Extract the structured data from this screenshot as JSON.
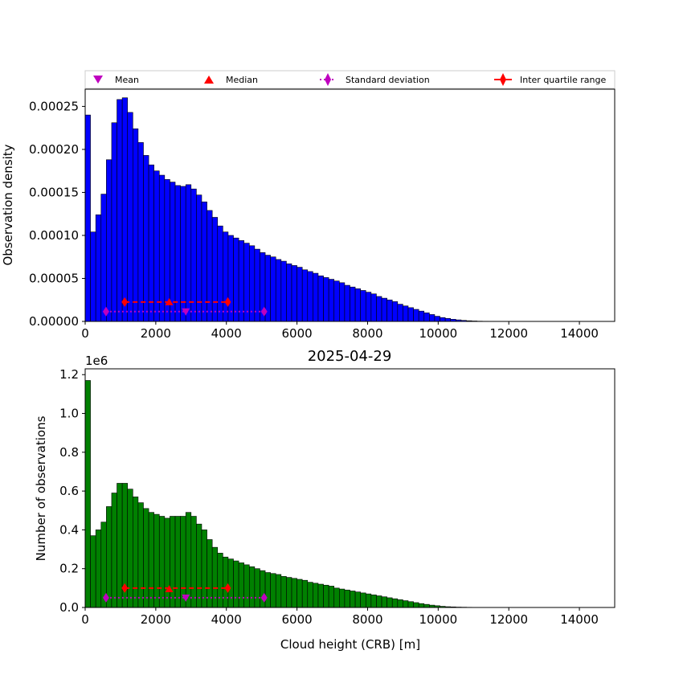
{
  "chart_data": [
    {
      "type": "bar",
      "panel": "top",
      "ylabel": "Observation density",
      "xlabel": "",
      "title": "",
      "xlim": [
        0,
        15000
      ],
      "ylim": [
        0,
        0.00027
      ],
      "xticks": [
        0,
        2000,
        4000,
        6000,
        8000,
        10000,
        12000,
        14000
      ],
      "yticks": [
        0.0,
        5e-05,
        0.0001,
        0.00015,
        0.0002,
        0.00025
      ],
      "ytick_labels": [
        "0.00000",
        "0.00005",
        "0.00010",
        "0.00015",
        "0.00020",
        "0.00025"
      ],
      "bin_width": 150,
      "bar_color": "#0000ff",
      "values": [
        0.00024,
        0.000104,
        0.000124,
        0.000148,
        0.000188,
        0.000231,
        0.000258,
        0.00026,
        0.000243,
        0.000224,
        0.000208,
        0.000193,
        0.000182,
        0.000175,
        0.00017,
        0.000165,
        0.000162,
        0.000158,
        0.000157,
        0.000159,
        0.000154,
        0.000147,
        0.000139,
        0.000129,
        0.000121,
        0.000111,
        0.000104,
        0.0001,
        9.7e-05,
        9.4e-05,
        9.1e-05,
        8.8e-05,
        8.4e-05,
        8e-05,
        7.7e-05,
        7.5e-05,
        7.2e-05,
        7e-05,
        6.7e-05,
        6.5e-05,
        6.3e-05,
        6e-05,
        5.8e-05,
        5.6e-05,
        5.3e-05,
        5.1e-05,
        4.9e-05,
        4.7e-05,
        4.5e-05,
        4.2e-05,
        4e-05,
        3.8e-05,
        3.6e-05,
        3.4e-05,
        3.2e-05,
        2.9e-05,
        2.7e-05,
        2.5e-05,
        2.3e-05,
        2e-05,
        1.8e-05,
        1.6e-05,
        1.4e-05,
        1.2e-05,
        1e-05,
        8e-06,
        6e-06,
        4.5e-06,
        3.5e-06,
        2.5e-06,
        1.8e-06,
        1.2e-06,
        8e-07,
        5e-07,
        3e-07,
        2e-07,
        1e-07,
        1e-07,
        5e-08,
        3e-08
      ],
      "stats": {
        "mean": {
          "x": 2850,
          "y": 1.15e-05
        },
        "median": {
          "x": 2380,
          "y": 2.25e-05
        },
        "std": {
          "x": [
            590,
            5070
          ],
          "y": 1.15e-05
        },
        "iqr": {
          "x": [
            1120,
            4040
          ],
          "y": 2.25e-05
        }
      }
    },
    {
      "type": "bar",
      "panel": "bottom",
      "title": "2025-04-29",
      "xlabel": "Cloud height (CRB) [m]",
      "ylabel": "Number of observations",
      "offset_label": "1e6",
      "xlim": [
        0,
        15000
      ],
      "ylim": [
        0,
        1.23
      ],
      "xticks": [
        0,
        2000,
        4000,
        6000,
        8000,
        10000,
        12000,
        14000
      ],
      "yticks": [
        0.0,
        0.2,
        0.4,
        0.6,
        0.8,
        1.0,
        1.2
      ],
      "ytick_labels": [
        "0.0",
        "0.2",
        "0.4",
        "0.6",
        "0.8",
        "1.0",
        "1.2"
      ],
      "bin_width": 150,
      "bar_color": "#008000",
      "values": [
        1.17,
        0.37,
        0.4,
        0.44,
        0.52,
        0.59,
        0.64,
        0.64,
        0.61,
        0.57,
        0.54,
        0.51,
        0.49,
        0.48,
        0.47,
        0.46,
        0.47,
        0.47,
        0.47,
        0.49,
        0.47,
        0.43,
        0.4,
        0.35,
        0.31,
        0.28,
        0.26,
        0.25,
        0.24,
        0.23,
        0.22,
        0.21,
        0.2,
        0.19,
        0.18,
        0.175,
        0.17,
        0.16,
        0.155,
        0.15,
        0.145,
        0.14,
        0.13,
        0.125,
        0.12,
        0.115,
        0.11,
        0.1,
        0.095,
        0.09,
        0.085,
        0.08,
        0.075,
        0.07,
        0.065,
        0.06,
        0.055,
        0.05,
        0.045,
        0.04,
        0.035,
        0.03,
        0.025,
        0.02,
        0.016,
        0.012,
        0.009,
        0.006,
        0.004,
        0.003,
        0.002,
        0.0015,
        0.001,
        0.0007,
        0.0005,
        0.0003,
        0.0002,
        0.0001,
        0.0001,
        0.0001
      ],
      "stats": {
        "mean": {
          "x": 2850,
          "y": 0.05
        },
        "median": {
          "x": 2380,
          "y": 0.095
        },
        "std": {
          "x": [
            590,
            5070
          ],
          "y": 0.05
        },
        "iqr": {
          "x": [
            1120,
            4040
          ],
          "y": 0.1
        }
      }
    }
  ],
  "legend": {
    "placement": "top",
    "entries": [
      {
        "label": "Mean",
        "marker": "triangle-down",
        "color": "#bf00bf"
      },
      {
        "label": "Median",
        "marker": "triangle-up",
        "color": "#ff0000"
      },
      {
        "label": "Standard deviation",
        "marker": "diamond-dotted",
        "color": "#bf00bf"
      },
      {
        "label": "Inter quartile range",
        "marker": "diamond-solid",
        "color": "#ff0000"
      }
    ]
  },
  "colors": {
    "stat_magenta": "#bf00bf",
    "stat_red": "#ff0000",
    "edge": "#000000"
  }
}
